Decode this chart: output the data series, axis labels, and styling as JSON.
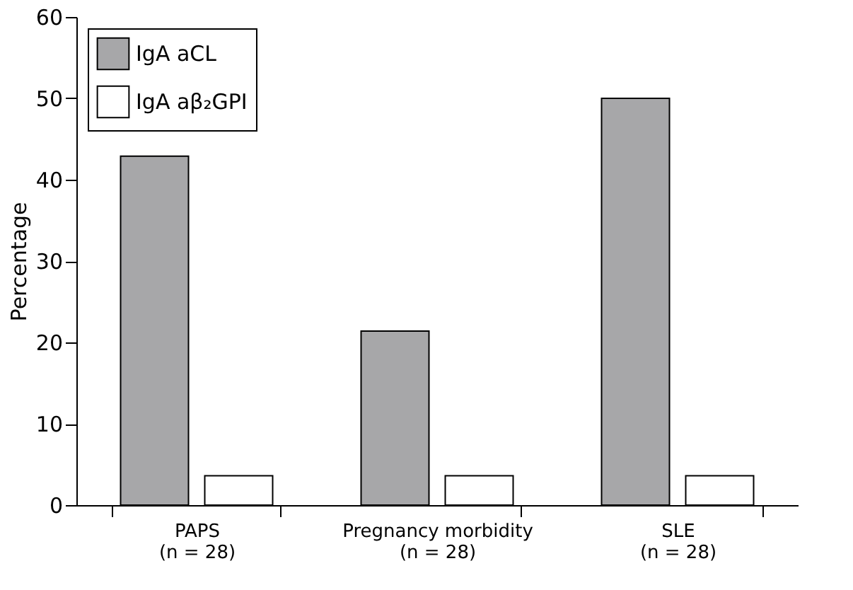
{
  "chart_data": {
    "type": "bar",
    "ylabel": "Percentage",
    "categories": [
      "PAPS\n(n = 28)",
      "Pregnancy morbidity\n(n = 28)",
      "SLE\n(n = 28)"
    ],
    "series": [
      {
        "name": "IgA aCL",
        "color": "#a7a7a9",
        "values": [
          42.9,
          21.4,
          50
        ]
      },
      {
        "name": "IgA aβ₂GPI",
        "color": "#ffffff",
        "values": [
          3.6,
          3.6,
          3.6
        ]
      }
    ],
    "ylim": [
      0,
      60
    ],
    "yticks": [
      0,
      10,
      20,
      30,
      40,
      50,
      60
    ],
    "grid": false,
    "legend": "top left"
  }
}
